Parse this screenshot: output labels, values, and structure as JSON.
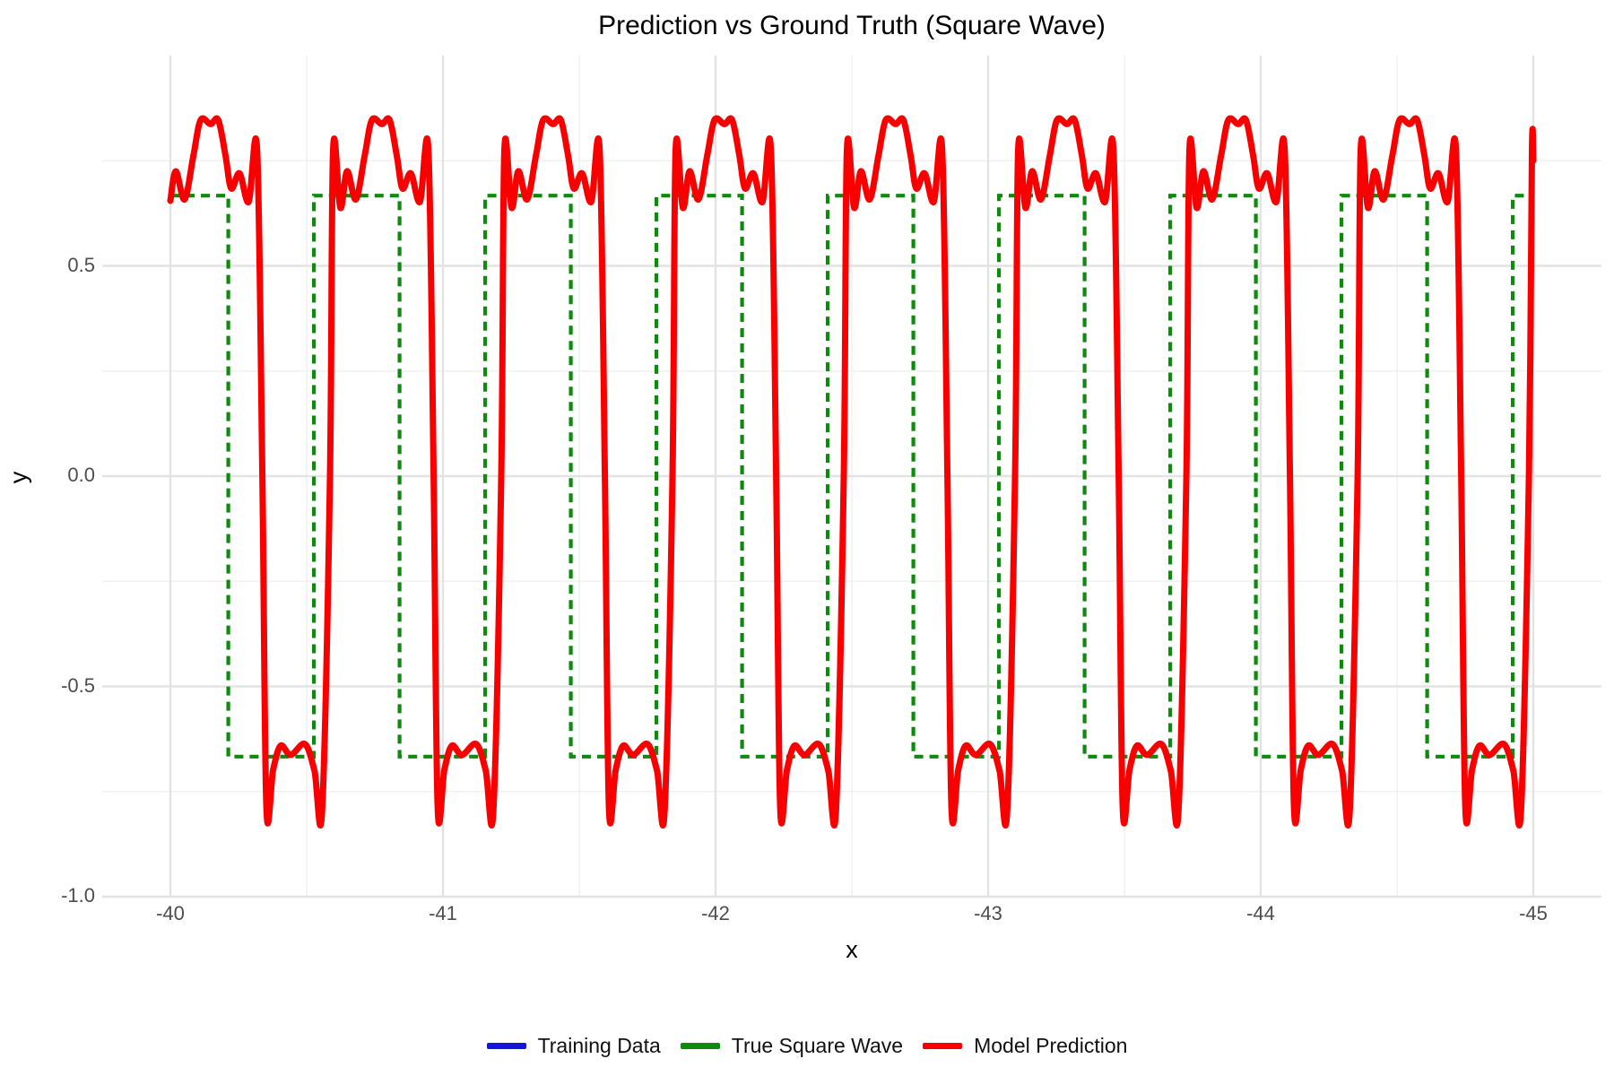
{
  "title": "Prediction vs Ground Truth (Square Wave)",
  "colors": {
    "red": "#f80000",
    "green": "#0e8a0e",
    "blue": "#1414dc",
    "grid_major": "#e3e3e3",
    "grid_minor": "#f1f1f1",
    "tick_label": "#4d4d4d",
    "text": "#000000",
    "background": "#ffffff"
  },
  "chart_data": {
    "type": "line",
    "title": "Prediction vs Ground Truth (Square Wave)",
    "xlabel": "x",
    "ylabel": "y",
    "grid": "on",
    "legend_position": "bottom",
    "x_axis": {
      "label": "x",
      "tick_values": [
        -40,
        -41,
        -42,
        -43,
        -44,
        -45
      ],
      "tick_labels": [
        "-40",
        "-41",
        "-42",
        "-43",
        "-44",
        "-45"
      ],
      "minor_ticks": [
        -40.5,
        -41.5,
        -42.5,
        -43.5,
        -44.5
      ],
      "display_domain": [
        -39.75,
        -45.25
      ],
      "direction": "reversed",
      "data_range": [
        -40,
        -45
      ]
    },
    "y_axis": {
      "label": "y",
      "tick_values": [
        -1.0,
        -0.5,
        0.0,
        0.5
      ],
      "tick_labels": [
        "-1.0",
        "-0.5",
        "0.0",
        "0.5"
      ],
      "minor_ticks": [
        -0.75,
        -0.25,
        0.25,
        0.75
      ],
      "range": [
        -1.0,
        1.0
      ]
    },
    "series": [
      {
        "name": "Training Data",
        "color": "#1414dc",
        "style": "solid",
        "data_in_view": false
      },
      {
        "name": "True Square Wave",
        "color": "#0e8a0e",
        "style": "dashed",
        "line_width": 4.2,
        "wave": {
          "type": "square",
          "amplitude": 0.667,
          "half_period": 0.3141593,
          "first_fall_x": -40.2123889,
          "x_start": -40,
          "x_end": -45,
          "start_level": "high"
        }
      },
      {
        "name": "Model Prediction",
        "color": "#f80000",
        "style": "solid",
        "line_width": 7,
        "wave": {
          "type": "square_approximation",
          "half_period": 0.3141593,
          "first_fall_x": -40.2123889,
          "rise_lag": 0.059,
          "fall_lag": 0.125,
          "x_start": -40,
          "x_end": -45,
          "plateau_high": 0.847,
          "plateau_mid_dip": 0.837,
          "edge_spike_high": 0.775,
          "ripple_low_high_segment": 0.64,
          "undershoot_low": -0.792,
          "ripple_level_low_segment": -0.64,
          "high_template": [
            [
              0,
              0
            ],
            [
              0.03,
              0.775
            ],
            [
              0.1,
              0.638
            ],
            [
              0.165,
              0.725
            ],
            [
              0.25,
              0.658
            ],
            [
              0.335,
              0.762
            ],
            [
              0.405,
              0.847
            ],
            [
              0.5,
              0.837
            ],
            [
              0.575,
              0.847
            ],
            [
              0.645,
              0.762
            ],
            [
              0.7,
              0.684
            ],
            [
              0.78,
              0.72
            ],
            [
              0.868,
              0.652
            ],
            [
              0.95,
              0.773
            ],
            [
              1,
              0
            ]
          ],
          "low_template": [
            [
              0,
              0
            ],
            [
              0.06,
              -0.787
            ],
            [
              0.16,
              -0.698
            ],
            [
              0.27,
              -0.641
            ],
            [
              0.42,
              -0.663
            ],
            [
              0.63,
              -0.637
            ],
            [
              0.77,
              -0.7
            ],
            [
              0.885,
              -0.792
            ],
            [
              1,
              0
            ]
          ]
        }
      }
    ]
  }
}
